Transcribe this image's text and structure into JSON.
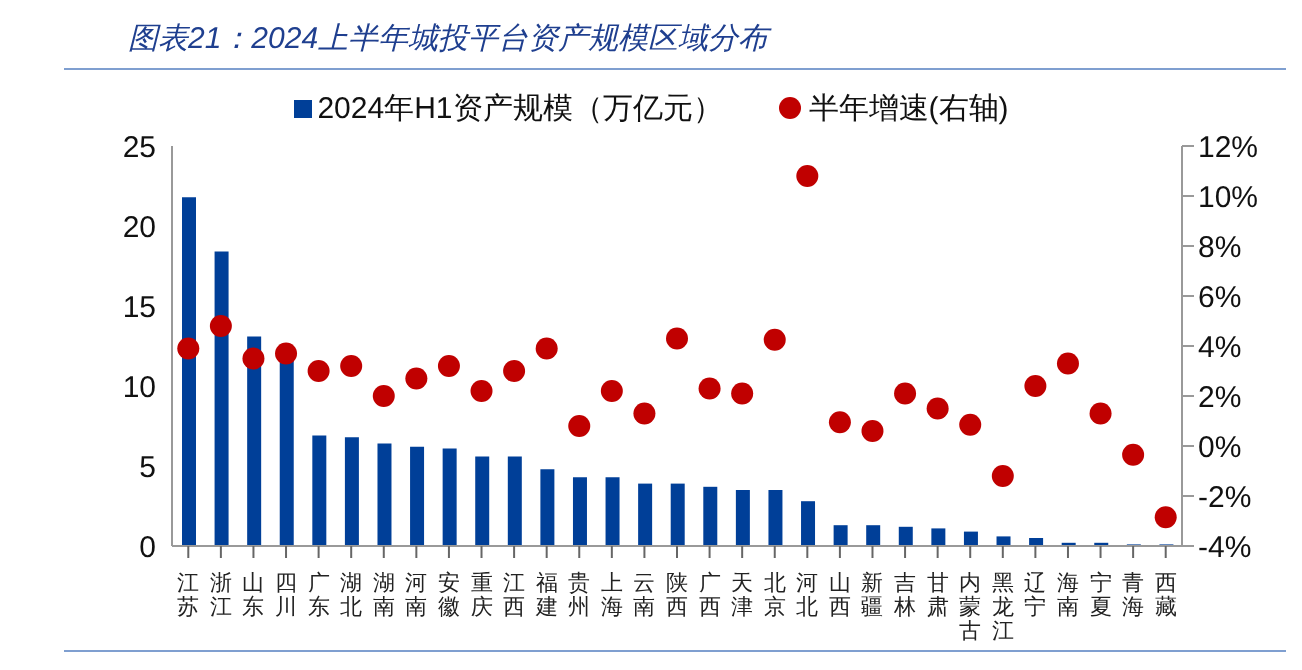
{
  "chart_data": {
    "type": "bar",
    "title": "图表21：2024上半年城投平台资产规模区域分布",
    "categories": [
      "江苏",
      "浙江",
      "山东",
      "四川",
      "广东",
      "湖北",
      "湖南",
      "河南",
      "安徽",
      "重庆",
      "江西",
      "福建",
      "贵州",
      "上海",
      "云南",
      "陕西",
      "广西",
      "天津",
      "北京",
      "河北",
      "山西",
      "新疆",
      "吉林",
      "甘肃",
      "内蒙古",
      "黑龙江",
      "辽宁",
      "海南",
      "宁夏",
      "青海",
      "西藏"
    ],
    "series": [
      {
        "name": "2024年H1资产规模（万亿元）",
        "color": "#003f98",
        "values": [
          21.8,
          18.4,
          13.1,
          11.6,
          6.9,
          6.8,
          6.4,
          6.2,
          6.1,
          5.6,
          5.6,
          4.8,
          4.3,
          4.3,
          3.9,
          3.9,
          3.7,
          3.5,
          3.5,
          2.8,
          1.3,
          1.3,
          1.2,
          1.1,
          0.9,
          0.6,
          0.5,
          0.2,
          0.2,
          0.1,
          0.1
        ]
      },
      {
        "name": "半年增速(右轴)",
        "type": "scatter",
        "axis": "y2",
        "color": "#c00000",
        "values": [
          3.9,
          4.8,
          3.5,
          3.7,
          3.0,
          3.2,
          2.0,
          2.7,
          3.2,
          2.2,
          3.0,
          3.9,
          0.8,
          2.2,
          1.3,
          4.3,
          2.3,
          2.1,
          4.25,
          10.8,
          0.95,
          0.6,
          2.1,
          1.5,
          0.85,
          -1.2,
          2.4,
          3.3,
          1.3,
          -0.35,
          -2.85
        ]
      }
    ],
    "ylim": [
      0,
      25
    ],
    "yticks": [
      0,
      5,
      10,
      15,
      20,
      25
    ],
    "y2lim": [
      -4,
      12
    ],
    "y2ticks": [
      {
        "value": -4,
        "label": "-4%"
      },
      {
        "value": -2,
        "label": "-2%"
      },
      {
        "value": 0,
        "label": "0%"
      },
      {
        "value": 2,
        "label": "2%"
      },
      {
        "value": 4,
        "label": "4%"
      },
      {
        "value": 6,
        "label": "6%"
      },
      {
        "value": 8,
        "label": "8%"
      },
      {
        "value": 10,
        "label": "10%"
      },
      {
        "value": 12,
        "label": "12%"
      }
    ],
    "marker": "circle",
    "legend": "top",
    "grid": false
  }
}
